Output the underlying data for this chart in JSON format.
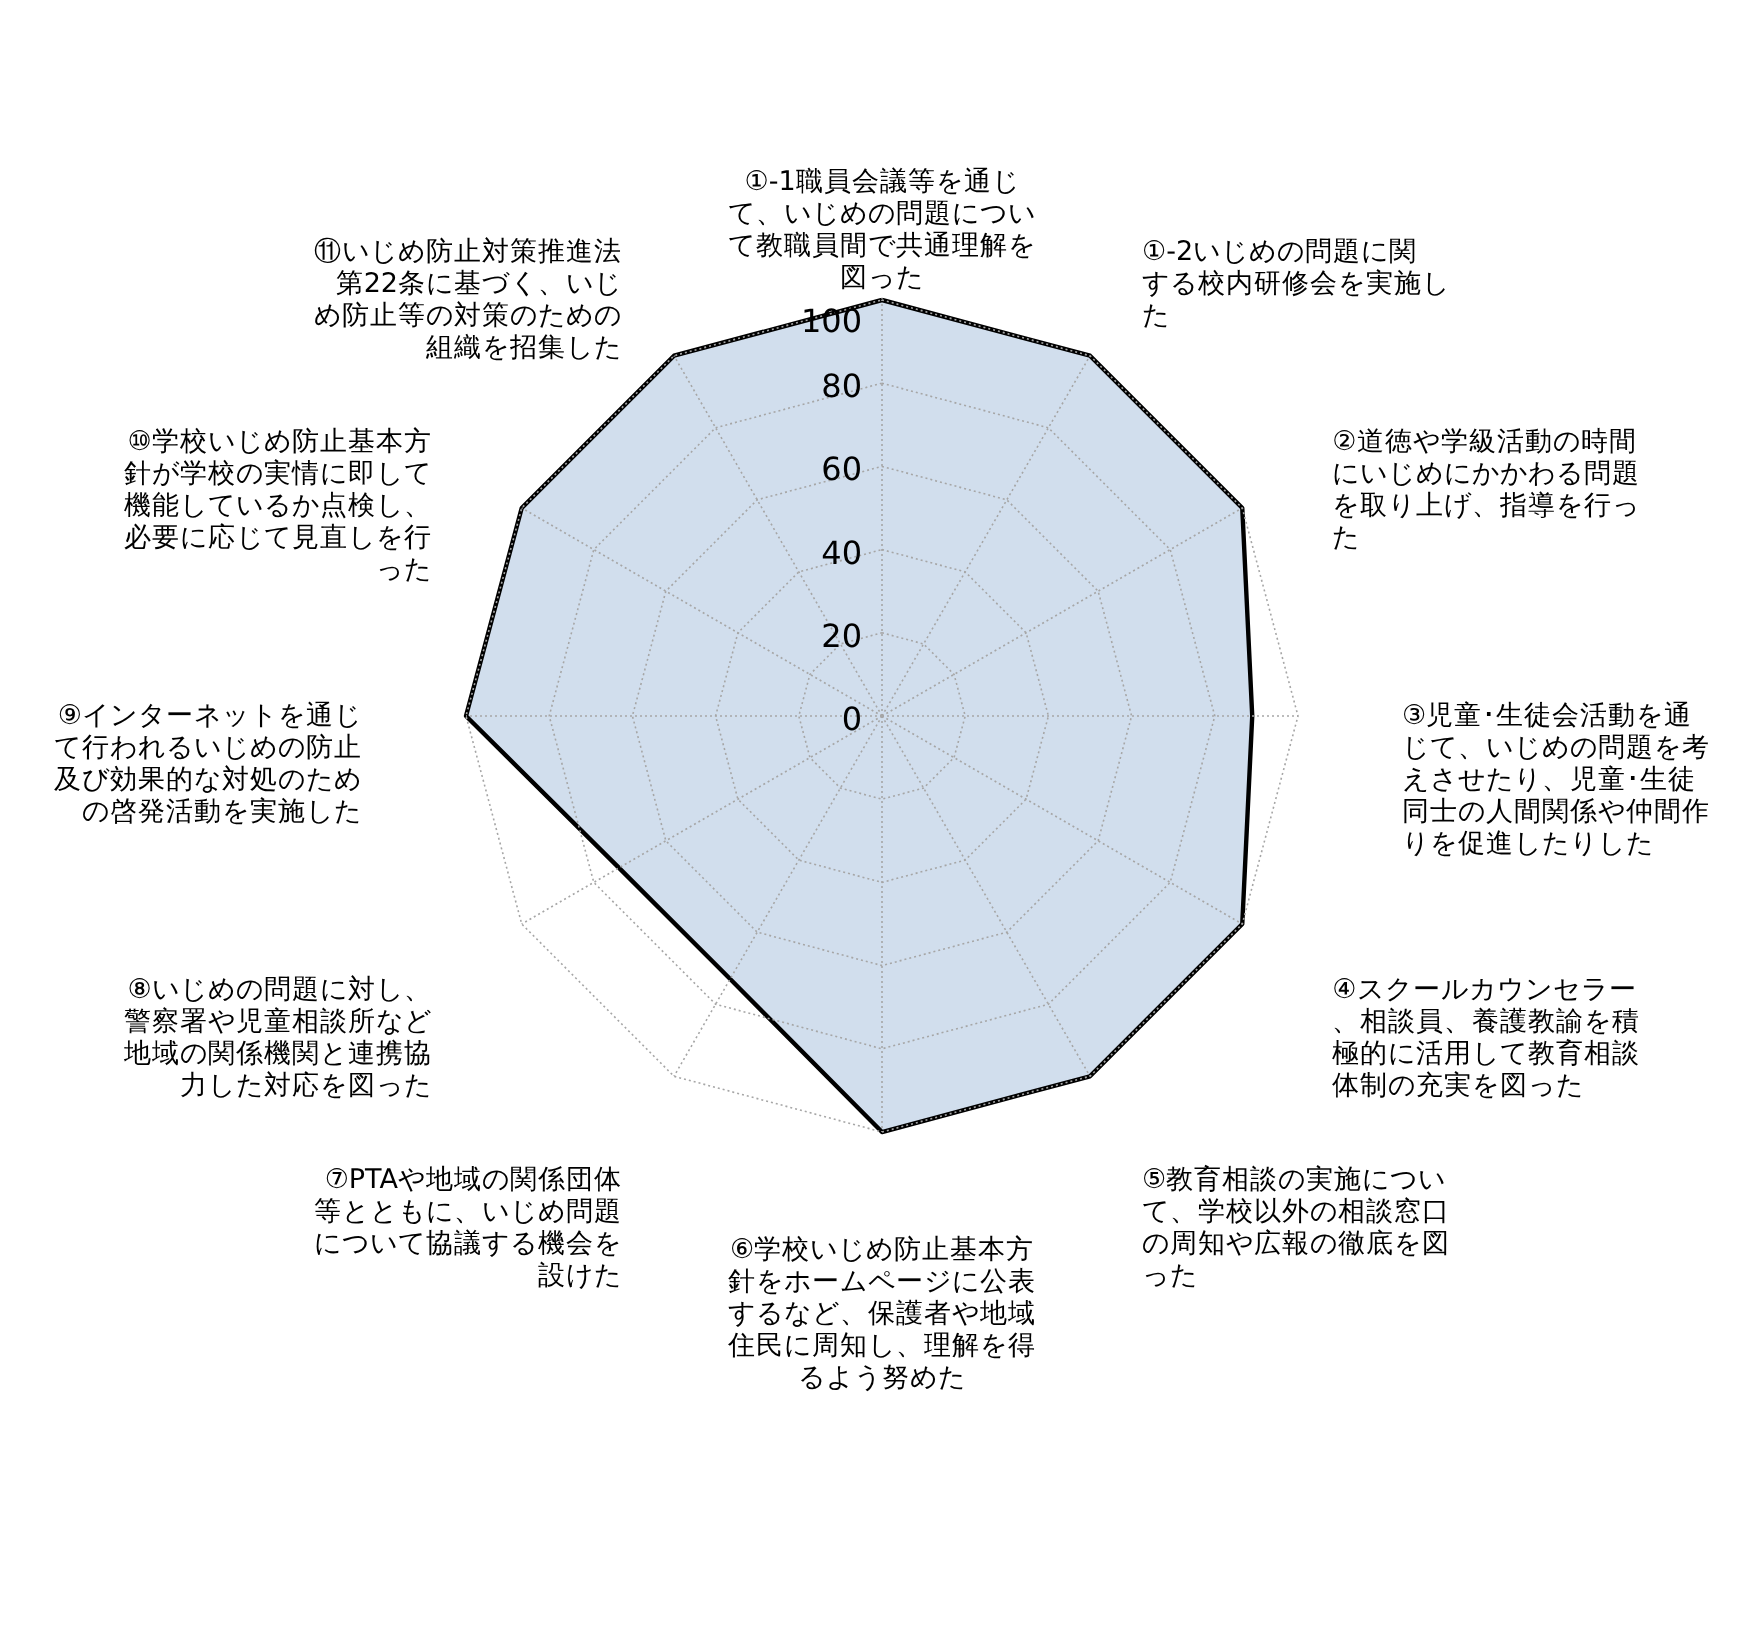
{
  "chart_data": {
    "type": "radar",
    "categories": [
      "①-1職員会議等を通じて、いじめの問題について教職員間で共通理解を図った",
      "①-2いじめの問題に関する校内研修会を実施した",
      "②道徳や学級活動の時間にいじめにかかわる問題を取り上げ、指導を行った",
      "③児童･生徒会活動を通じて、いじめの問題を考えさせたり、児童･生徒同士の人間関係や仲間作りを促進したりした",
      "④スクールカウンセラー、相談員、養護教諭を積極的に活用して教育相談体制の充実を図った",
      "⑤教育相談の実施について、学校以外の相談窓口の周知や広報の徹底を図った",
      "⑥学校いじめ防止基本方針をホームページに公表するなど、保護者や地域住民に周知し、理解を得るよう努めた",
      "⑦PTAや地域の関係団体等とともに、いじめ問題について協議する機会を設けた",
      "⑧いじめの問題に対し、警察署や児童相談所など地域の関係機関と連携協力した対応を図った",
      "⑨インターネットを通じて行われるいじめの防止及び効果的な対処のための啓発活動を実施した",
      "⑩学校いじめ防止基本方針が学校の実情に即して機能しているか点検し、必要に応じて見直しを行った",
      "⑪いじめ防止対策推進法第22条に基づく、いじめ防止等の対策のための組織を招集した"
    ],
    "series": [
      {
        "color": "#cfdcec",
        "values": [
          100,
          100,
          100,
          89,
          100,
          100,
          100,
          73,
          73,
          100,
          100,
          100
        ]
      }
    ],
    "ylim": [
      0,
      100
    ],
    "yticks": [
      0,
      20,
      40,
      60,
      80,
      100
    ],
    "grid": true,
    "marker": "none",
    "line_style": "solid"
  }
}
